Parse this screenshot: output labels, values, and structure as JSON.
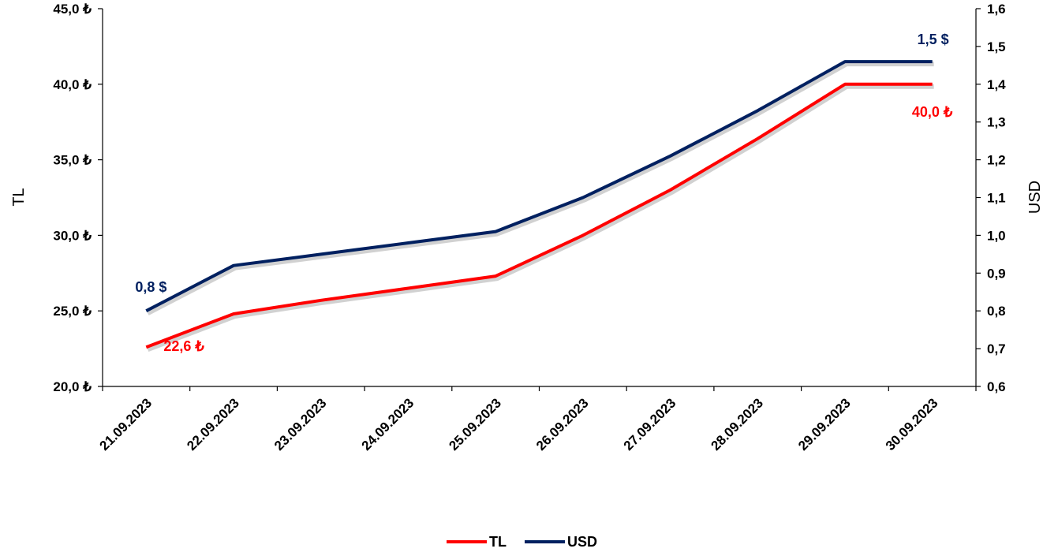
{
  "chart_data": {
    "type": "line",
    "categories": [
      "21.09.2023",
      "22.09.2023",
      "23.09.2023",
      "24.09.2023",
      "25.09.2023",
      "26.09.2023",
      "27.09.2023",
      "28.09.2023",
      "29.09.2023",
      "30.09.2023"
    ],
    "y_left": {
      "label": "TL",
      "range": [
        20,
        45
      ],
      "ticks": [
        "20,0 ₺",
        "25,0 ₺",
        "30,0 ₺",
        "35,0 ₺",
        "40,0 ₺",
        "45,0 ₺"
      ],
      "tick_values": [
        20,
        25,
        30,
        35,
        40,
        45
      ]
    },
    "y_right": {
      "label": "USD",
      "range": [
        0.6,
        1.6
      ],
      "ticks": [
        "0,6",
        "0,7",
        "0,8",
        "0,9",
        "1,0",
        "1,1",
        "1,2",
        "1,3",
        "1,4",
        "1,5",
        "1,6"
      ],
      "tick_values": [
        0.6,
        0.7,
        0.8,
        0.9,
        1.0,
        1.1,
        1.2,
        1.3,
        1.4,
        1.5,
        1.6
      ]
    },
    "series": [
      {
        "name": "TL",
        "axis": "left",
        "color": "#ff0000",
        "values": [
          22.6,
          24.8,
          25.7,
          26.5,
          27.3,
          30.0,
          33.0,
          36.4,
          40.0,
          40.0
        ]
      },
      {
        "name": "USD",
        "axis": "right",
        "color": "#002060",
        "values": [
          0.8,
          0.92,
          0.95,
          0.98,
          1.01,
          1.1,
          1.21,
          1.33,
          1.46,
          1.46
        ]
      }
    ],
    "data_labels": [
      {
        "series": 0,
        "index": 0,
        "text": "22,6 ₺"
      },
      {
        "series": 0,
        "index": 9,
        "text": "40,0 ₺"
      },
      {
        "series": 1,
        "index": 0,
        "text": "0,8 $"
      },
      {
        "series": 1,
        "index": 9,
        "text": "1,5 $"
      }
    ],
    "legend": {
      "position": "bottom-center"
    },
    "grid": false
  }
}
